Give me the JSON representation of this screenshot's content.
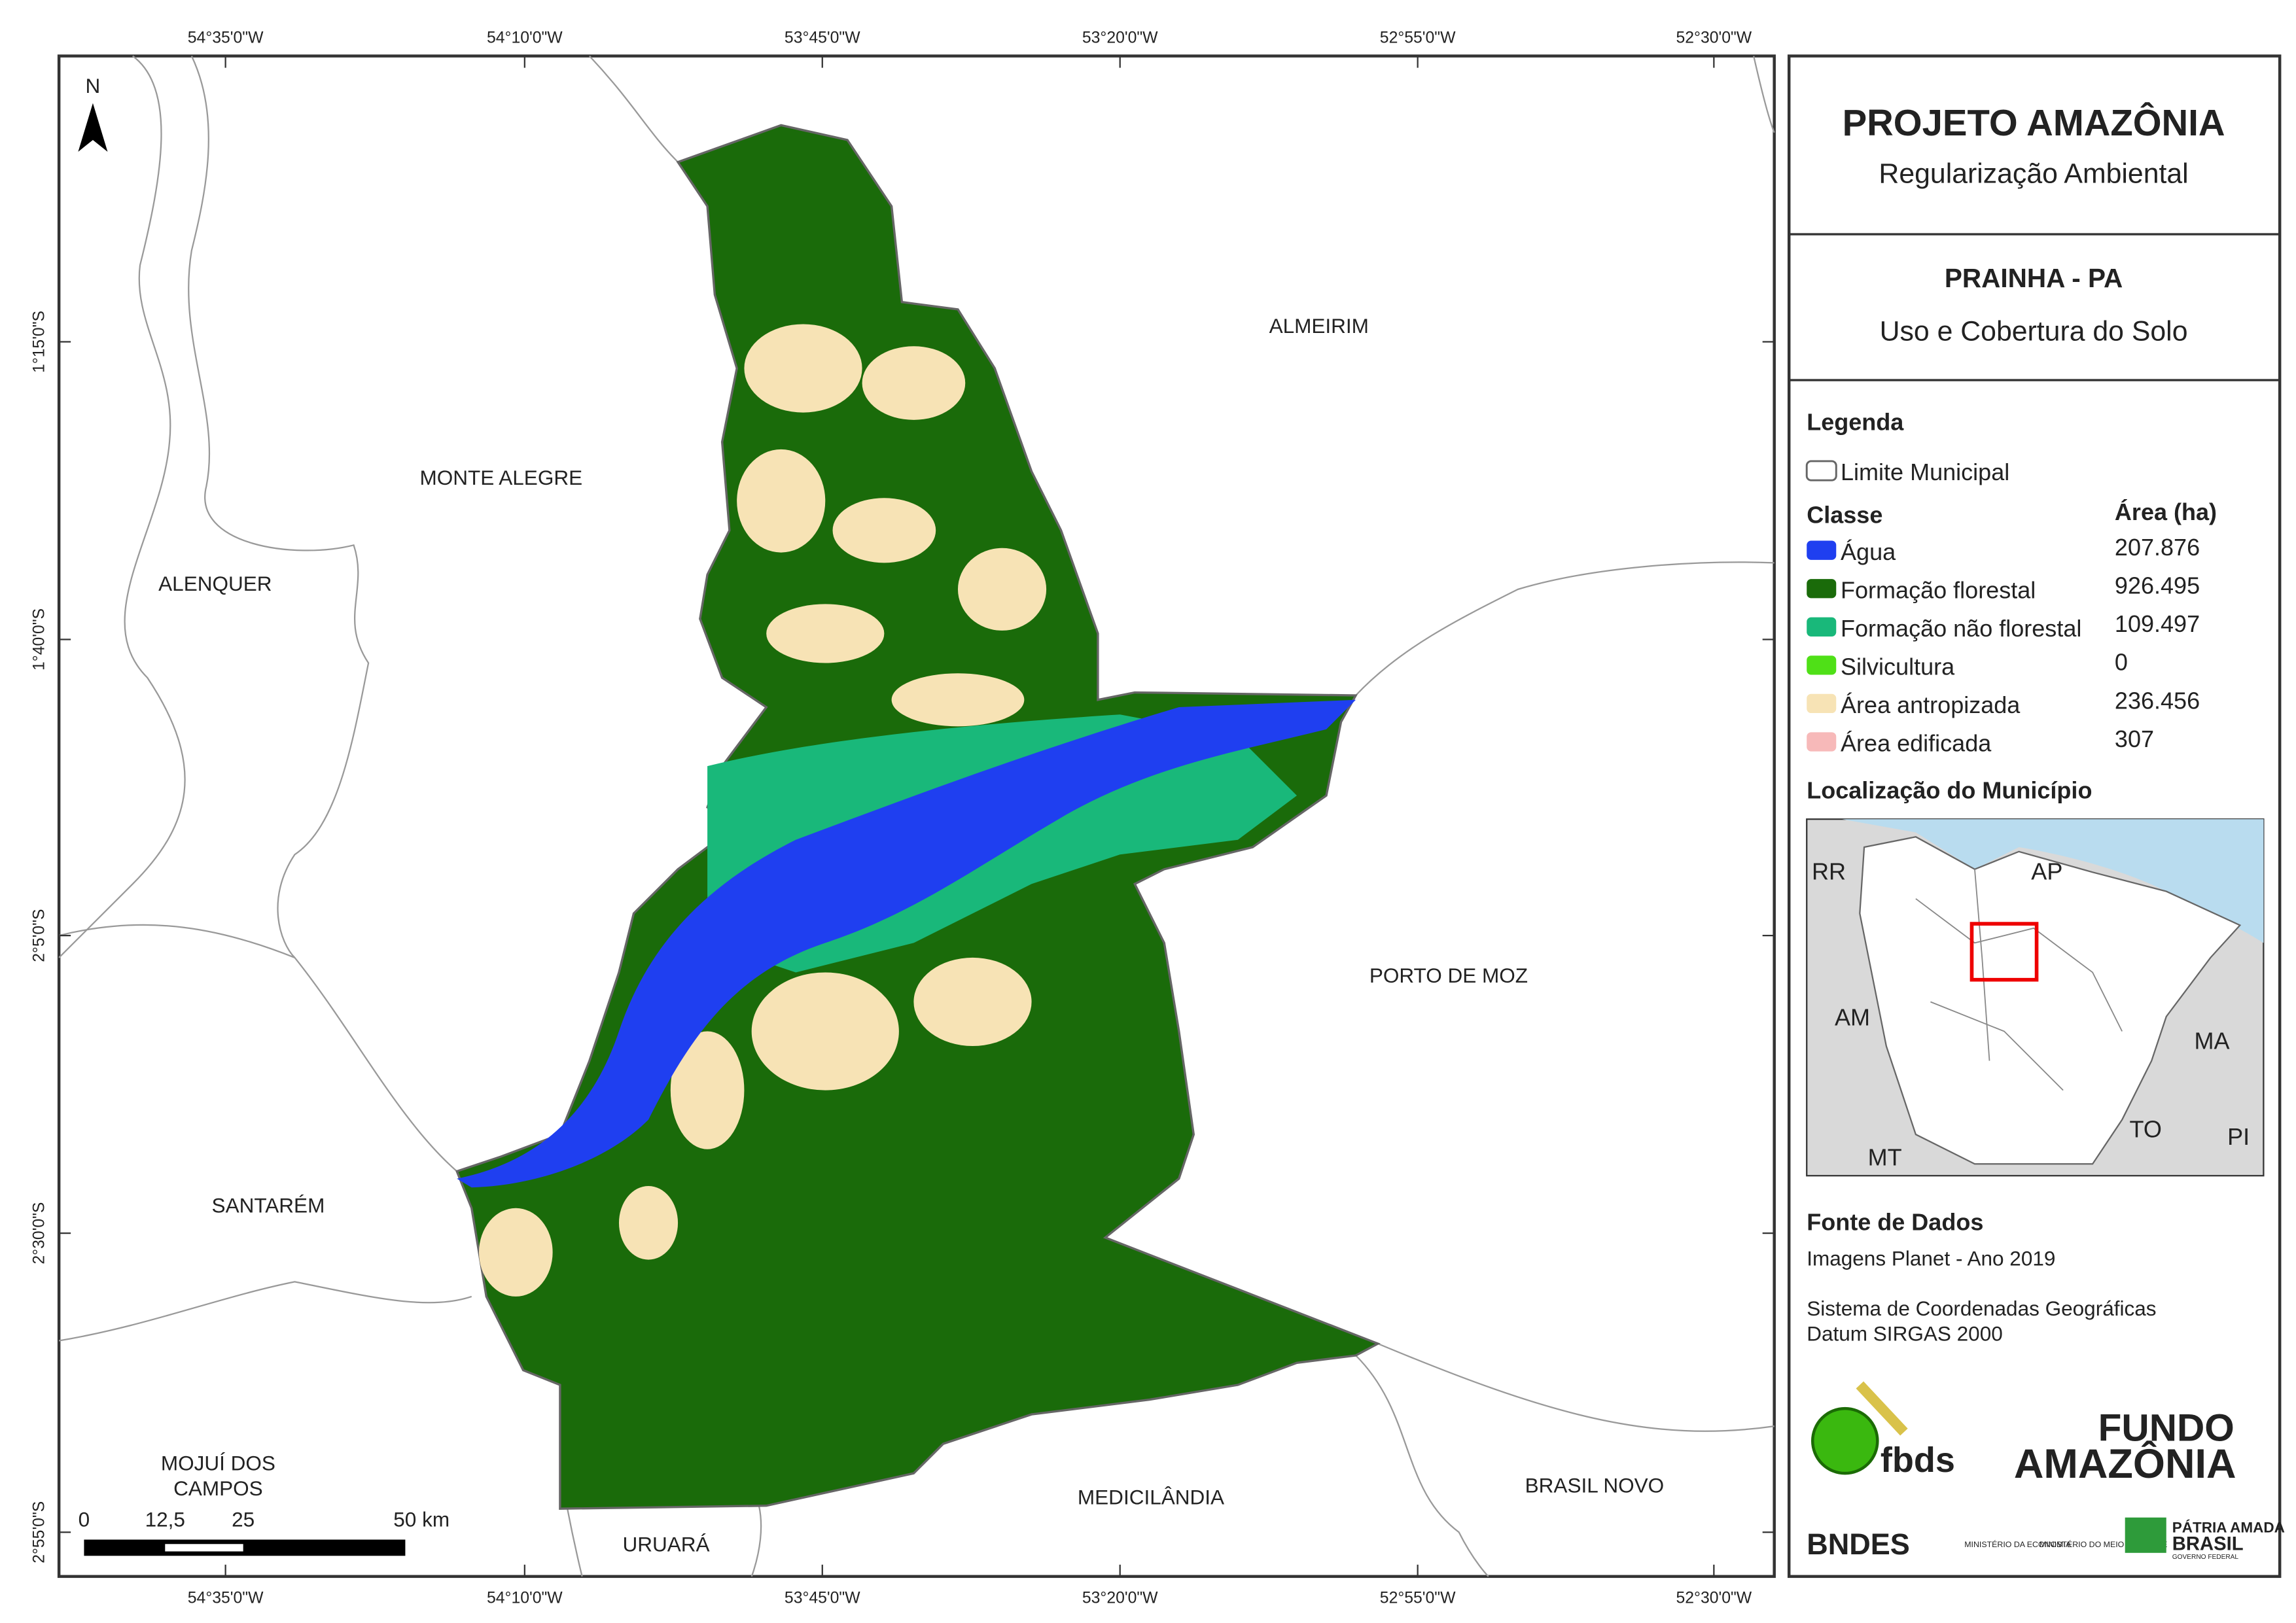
{
  "header": {
    "title": "PROJETO AMAZÔNIA",
    "subtitle": "Regularização Ambiental"
  },
  "map_info": {
    "municipality": "PRAINHA - PA",
    "theme": "Uso e Cobertura do Solo"
  },
  "legend": {
    "title": "Legenda",
    "boundary": "Limite Municipal",
    "class_header": "Classe",
    "area_header": "Área (ha)",
    "items": [
      {
        "name": "Água",
        "area": "207.876",
        "color": "#1f3ff0"
      },
      {
        "name": "Formação florestal",
        "area": "926.495",
        "color": "#1a6b0a"
      },
      {
        "name": "Formação não florestal",
        "area": "109.497",
        "color": "#19b87a"
      },
      {
        "name": "Silvicultura",
        "area": "0",
        "color": "#4fe017"
      },
      {
        "name": "Área antropizada",
        "area": "236.456",
        "color": "#f7e3b5"
      },
      {
        "name": "Área edificada",
        "area": "307",
        "color": "#f7b9b9"
      }
    ]
  },
  "location": {
    "title": "Localização do Município",
    "labels": [
      "RR",
      "AP",
      "AM",
      "MA",
      "TO",
      "MT",
      "PI"
    ]
  },
  "sources": {
    "title": "Fonte de Dados",
    "lines": [
      "Imagens Planet - Ano 2019",
      "Sistema de Coordenadas Geográficas",
      "Datum SIRGAS 2000"
    ]
  },
  "logos": {
    "fbds": "fbds",
    "fundo": "FUNDO",
    "amazonia": "AMAZÔNIA",
    "bndes": "BNDES",
    "min_economia": "MINISTÉRIO DA ECONOMIA",
    "min_ambiente": "MINISTÉRIO DO MEIO AMBIENTE",
    "patria": "PÁTRIA AMADA",
    "brasil": "BRASIL",
    "governo": "GOVERNO FEDERAL"
  },
  "map": {
    "north": "N",
    "longitudes": [
      "54°35'0\"W",
      "54°10'0\"W",
      "53°45'0\"W",
      "53°20'0\"W",
      "52°55'0\"W",
      "52°30'0\"W"
    ],
    "latitudes": [
      "1°15'0\"S",
      "1°40'0\"S",
      "2°5'0\"S",
      "2°30'0\"S",
      "2°55'0\"S"
    ],
    "places": [
      [
        "ALMEIRIM"
      ],
      [
        "MONTE ALEGRE"
      ],
      [
        "ALENQUER"
      ],
      [
        "PORTO DE MOZ"
      ],
      [
        "SANTARÉM"
      ],
      [
        "MOJUÍ DOS",
        "CAMPOS"
      ],
      [
        "MEDICILÂNDIA"
      ],
      [
        "BRASIL NOVO"
      ],
      [
        "URUARÁ"
      ]
    ],
    "scale_labels": [
      "0",
      "12,5",
      "25",
      "50 km"
    ]
  }
}
